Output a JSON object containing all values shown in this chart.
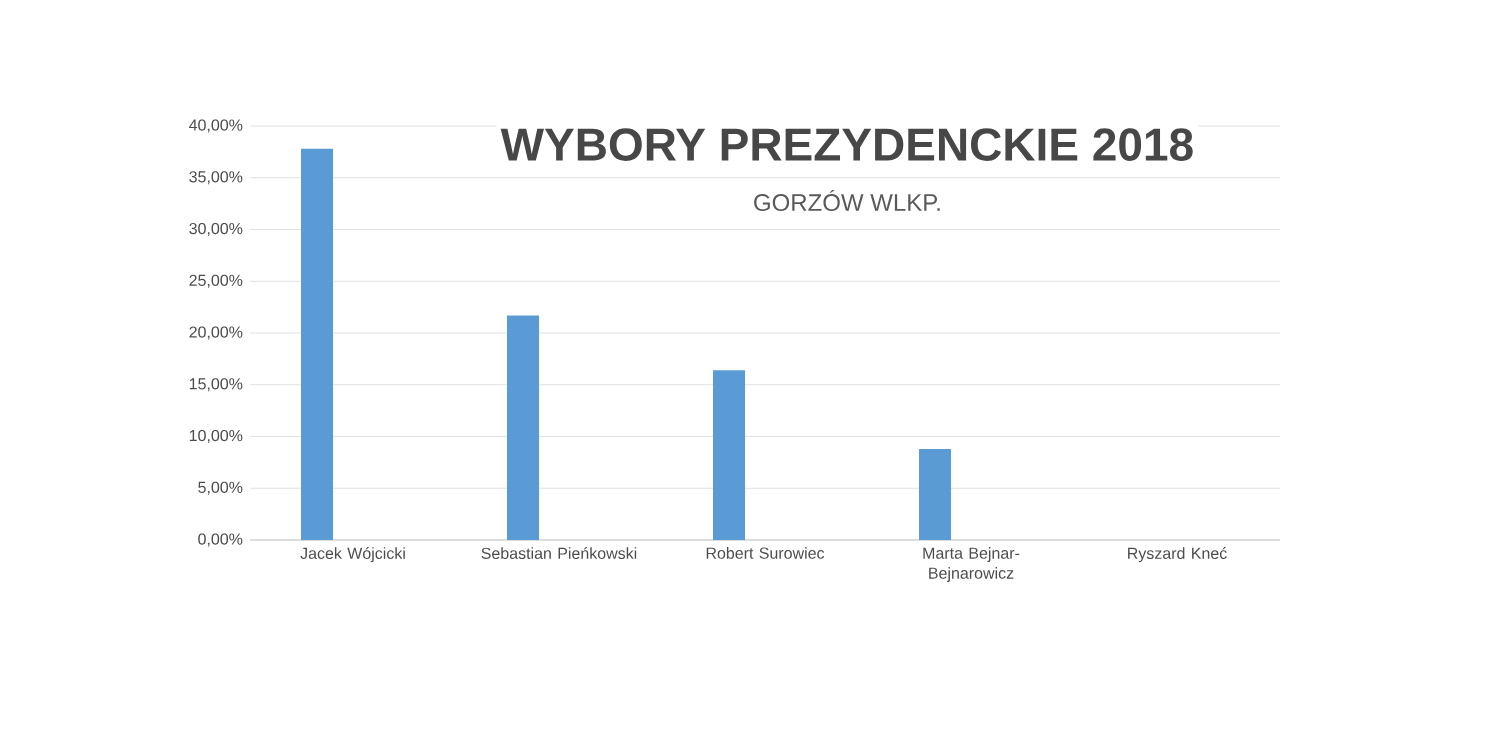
{
  "chart_data": {
    "type": "bar",
    "title": "WYBORY PREZYDENCKIE 2018",
    "subtitle": "GORZÓW WLKP.",
    "categories": [
      "Jacek Wójcicki",
      "Sebastian Pieńkowski",
      "Robert Surowiec",
      "Marta Bejnar-Bejnarowicz",
      "Ryszard Kneć"
    ],
    "values": [
      37.8,
      21.7,
      16.4,
      8.8,
      0
    ],
    "color": "#5b9bd5",
    "ylim": [
      0,
      40
    ],
    "yticks": [
      {
        "value": 0,
        "label": "0,00%"
      },
      {
        "value": 5,
        "label": "5,00%"
      },
      {
        "value": 10,
        "label": "10,00%"
      },
      {
        "value": 15,
        "label": "15,00%"
      },
      {
        "value": 20,
        "label": "20,00%"
      },
      {
        "value": 25,
        "label": "25,00%"
      },
      {
        "value": 30,
        "label": "30,00%"
      },
      {
        "value": 35,
        "label": "35,00%"
      },
      {
        "value": 40,
        "label": "40,00%"
      }
    ],
    "grid": "y"
  }
}
